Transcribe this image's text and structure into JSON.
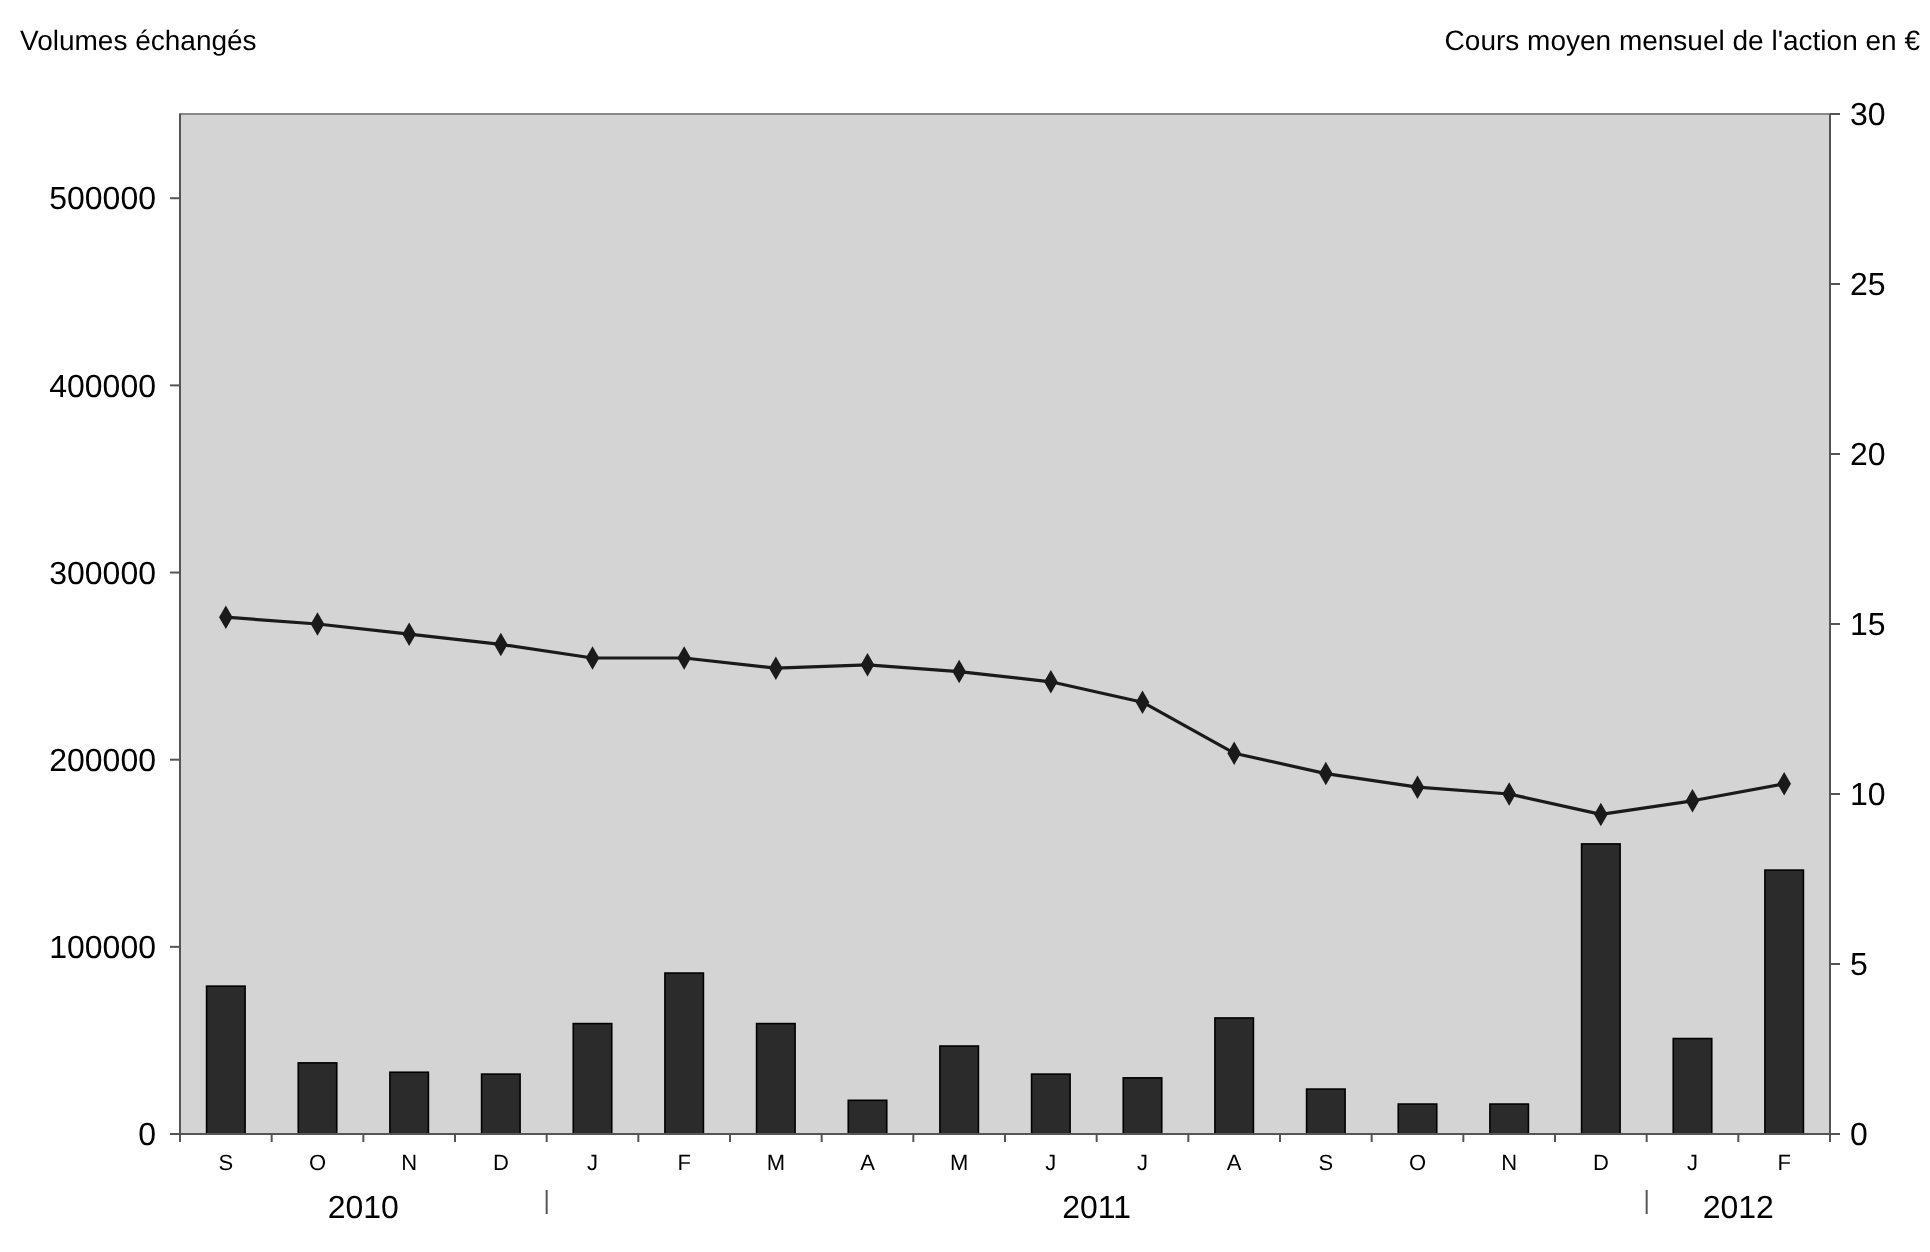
{
  "chart_data": {
    "type": "bar",
    "ylabel": "Volumes échangés",
    "y2label": "Cours moyen mensuel de l'action en €",
    "categories": [
      "S",
      "O",
      "N",
      "D",
      "J",
      "F",
      "M",
      "A",
      "M",
      "J",
      "J",
      "A",
      "S",
      "O",
      "N",
      "D",
      "J",
      "F"
    ],
    "series": [
      {
        "color": "#2b2b2b",
        "values": [
          79000,
          38000,
          33000,
          32000,
          59000,
          86000,
          59000,
          18000,
          47000,
          32000,
          30000,
          62000,
          24000,
          16000,
          16000,
          155000,
          51000,
          141000
        ]
      },
      {
        "type": "line",
        "axis": "y2",
        "color": "#1a1a1a",
        "marker": "diamond",
        "line_style": "solid",
        "values": [
          15.2,
          15.0,
          14.7,
          14.4,
          14.0,
          14.0,
          13.7,
          13.8,
          13.6,
          13.3,
          12.7,
          11.2,
          10.6,
          10.2,
          10.0,
          9.4,
          9.8,
          10.3
        ]
      }
    ],
    "ylim": [
      0,
      545000
    ],
    "yticks": [
      0,
      100000,
      200000,
      300000,
      400000,
      500000
    ],
    "y2lim": [
      0,
      30
    ],
    "y2ticks": [
      0,
      5,
      10,
      15,
      20,
      25,
      30
    ],
    "annotations": [
      "2010",
      "2011",
      "2012"
    ]
  }
}
